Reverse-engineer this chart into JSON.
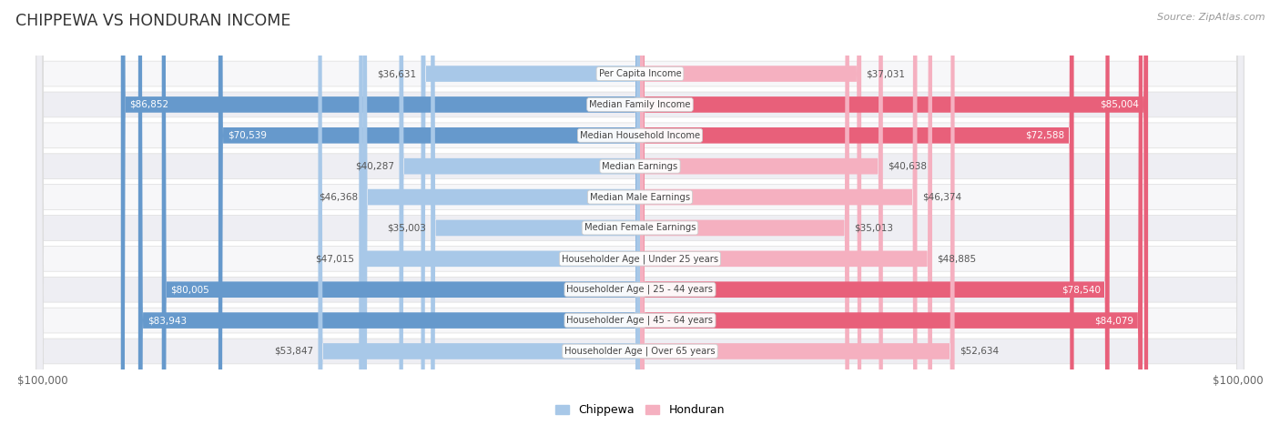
{
  "title": "CHIPPEWA VS HONDURAN INCOME",
  "source": "Source: ZipAtlas.com",
  "categories": [
    "Per Capita Income",
    "Median Family Income",
    "Median Household Income",
    "Median Earnings",
    "Median Male Earnings",
    "Median Female Earnings",
    "Householder Age | Under 25 years",
    "Householder Age | 25 - 44 years",
    "Householder Age | 45 - 64 years",
    "Householder Age | Over 65 years"
  ],
  "chippewa_values": [
    36631,
    86852,
    70539,
    40287,
    46368,
    35003,
    47015,
    80005,
    83943,
    53847
  ],
  "honduran_values": [
    37031,
    85004,
    72588,
    40638,
    46374,
    35013,
    48885,
    78540,
    84079,
    52634
  ],
  "chippewa_labels": [
    "$36,631",
    "$86,852",
    "$70,539",
    "$40,287",
    "$46,368",
    "$35,003",
    "$47,015",
    "$80,005",
    "$83,943",
    "$53,847"
  ],
  "honduran_labels": [
    "$37,031",
    "$85,004",
    "$72,588",
    "$40,638",
    "$46,374",
    "$35,013",
    "$48,885",
    "$78,540",
    "$84,079",
    "$52,634"
  ],
  "max_value": 100000,
  "chippewa_color_light": "#a8c8e8",
  "chippewa_color_dark": "#6699cc",
  "honduran_color_light": "#f5b0c0",
  "honduran_color_dark": "#e8607a",
  "chippewa_label_inside": [
    false,
    true,
    true,
    false,
    false,
    false,
    false,
    true,
    true,
    false
  ],
  "honduran_label_inside": [
    false,
    true,
    true,
    false,
    false,
    false,
    false,
    true,
    true,
    false
  ],
  "row_colors": [
    "#f7f7f9",
    "#eeeef3",
    "#f7f7f9",
    "#eeeef3",
    "#f7f7f9",
    "#eeeef3",
    "#f7f7f9",
    "#eeeef3",
    "#f7f7f9",
    "#eeeef3"
  ],
  "bg_color": "#ffffff",
  "bar_height": 0.52,
  "legend_labels": [
    "Chippewa",
    "Honduran"
  ]
}
